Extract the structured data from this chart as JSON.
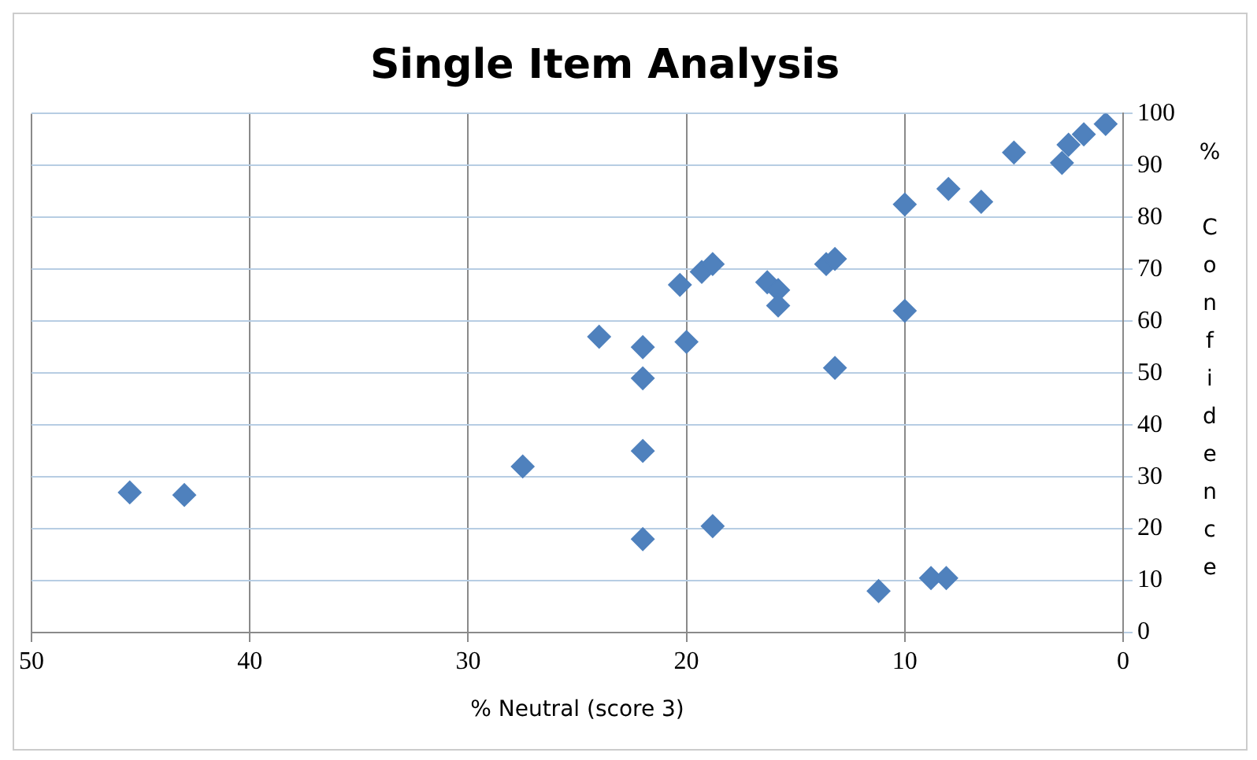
{
  "chart_data": {
    "type": "scatter",
    "title": "Single Item Analysis",
    "xlabel": "% Neutral (score 3)",
    "ylabel": "% Confidence",
    "x": [
      45.5,
      43,
      27.5,
      24,
      22,
      22,
      22,
      22,
      20.3,
      20,
      19.3,
      18.8,
      18.8,
      16.3,
      15.8,
      15.8,
      13.6,
      13.2,
      13.2,
      11.2,
      10,
      10,
      8.8,
      8.1,
      8,
      6.5,
      5,
      2.8,
      2.5,
      1.8,
      0.8
    ],
    "series": [
      {
        "color": "#4f81bd",
        "values": [
          27,
          26.5,
          32,
          57,
          55,
          49,
          35,
          18,
          67,
          56,
          69.5,
          71,
          20.5,
          67.5,
          66,
          63,
          71,
          72,
          51,
          8,
          82.5,
          62,
          10.5,
          10.5,
          85.5,
          83,
          92.5,
          90.5,
          94,
          96,
          98
        ]
      }
    ],
    "xlim": [
      50,
      0
    ],
    "xticks": [
      50,
      40,
      30,
      20,
      10,
      0
    ],
    "ylim": [
      0,
      100
    ],
    "yticks": [
      0,
      10,
      20,
      30,
      40,
      50,
      60,
      70,
      80,
      90,
      100
    ],
    "grid": true,
    "marker": "diamond",
    "legend": false
  }
}
